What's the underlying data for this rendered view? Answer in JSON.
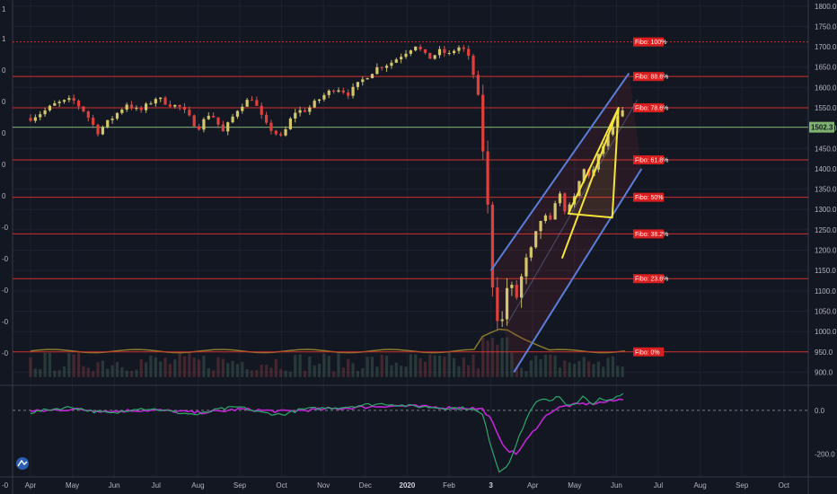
{
  "chart_data": {
    "type": "candlestick",
    "price_axis": {
      "ticks": [
        "1800.0",
        "1750.0",
        "1700.0",
        "1650.0",
        "1600.0",
        "1550.0",
        "1500.0",
        "1450.0",
        "1400.0",
        "1350.0",
        "1300.0",
        "1250.0",
        "1200.0",
        "1150.0",
        "1100.0",
        "1050.0",
        "1000.0",
        "950.0",
        "900.0"
      ],
      "tick_values": [
        1800,
        1750,
        1700,
        1650,
        1600,
        1550,
        1500,
        1450,
        1400,
        1350,
        1300,
        1250,
        1200,
        1150,
        1100,
        1050,
        1000,
        950,
        900
      ],
      "range": [
        870,
        1815
      ]
    },
    "last_price": {
      "label": "1502.3",
      "value": 1502.3
    },
    "left_axis_labels": [
      "1",
      "1",
      "0",
      "0",
      "0",
      "0",
      "0",
      "-0",
      "-0",
      "-0",
      "-0",
      "-0",
      "-0"
    ],
    "x_axis": {
      "labels": [
        "Apr",
        "May",
        "Jun",
        "Jul",
        "Aug",
        "Sep",
        "Oct",
        "Nov",
        "Dec",
        "2020",
        "Feb",
        "3",
        "Apr",
        "May",
        "Jun",
        "Jul",
        "Aug",
        "Sep",
        "Oct"
      ],
      "bold": [
        "2020",
        "3"
      ]
    },
    "fibo_levels": [
      {
        "label": "Fibo:  100%",
        "value": 1712
      },
      {
        "label": "Fibo: 88.6%",
        "value": 1627
      },
      {
        "label": "Fibo: 78.6%",
        "value": 1550
      },
      {
        "label": "Fibo: 61.8%",
        "value": 1422
      },
      {
        "label": "Fibo:   50%",
        "value": 1330
      },
      {
        "label": "Fibo: 38.2%",
        "value": 1240
      },
      {
        "label": "Fibo: 23.6%",
        "value": 1130
      },
      {
        "label": "Fibo:    0%",
        "value": 950
      }
    ],
    "price_path": {
      "x_month_index": [
        0,
        0.3,
        0.6,
        1.0,
        1.3,
        1.6,
        2.0,
        2.3,
        2.6,
        3.0,
        3.3,
        3.6,
        4.0,
        4.3,
        4.6,
        5.0,
        5.3,
        5.6,
        6.0,
        6.3,
        6.6,
        7.0,
        7.3,
        7.6,
        8.0,
        8.3,
        8.6,
        9.0,
        9.2,
        9.5,
        9.8,
        10.0,
        10.2,
        10.4,
        10.55,
        10.7,
        10.8,
        10.9,
        11.0,
        11.1,
        11.25,
        11.4,
        11.6,
        11.8,
        12.0,
        12.2,
        12.4,
        12.6,
        12.8,
        13.0,
        13.2,
        13.4,
        13.6,
        13.8,
        14.0,
        14.2
      ],
      "price": [
        1525,
        1540,
        1560,
        1570,
        1540,
        1490,
        1530,
        1560,
        1540,
        1575,
        1560,
        1550,
        1500,
        1540,
        1490,
        1555,
        1575,
        1510,
        1475,
        1540,
        1545,
        1580,
        1600,
        1585,
        1625,
        1650,
        1660,
        1690,
        1705,
        1670,
        1690,
        1680,
        1700,
        1690,
        1650,
        1560,
        1460,
        1350,
        1160,
        1060,
        1010,
        1120,
        1080,
        1160,
        1200,
        1280,
        1260,
        1350,
        1290,
        1330,
        1400,
        1380,
        1440,
        1480,
        1520,
        1545
      ]
    },
    "channel": {
      "upper": [
        [
          11.0,
          1150
        ],
        [
          14.3,
          1635
        ]
      ],
      "middle": [
        [
          11.4,
          1020
        ],
        [
          14.5,
          1570
        ]
      ],
      "lower": [
        [
          11.55,
          900
        ],
        [
          14.6,
          1400
        ]
      ]
    },
    "wedge": [
      [
        12.7,
        1180
      ],
      [
        14.05,
        1550
      ],
      [
        13.9,
        1280
      ],
      [
        12.85,
        1290
      ],
      [
        14.05,
        1550
      ]
    ],
    "macd": {
      "ticks": [
        "0.0",
        "-200.0"
      ],
      "tick_values": [
        0,
        -200
      ],
      "range": [
        -300,
        110
      ],
      "x_month_index": [
        0,
        0.5,
        1.0,
        1.5,
        2.0,
        2.5,
        3.0,
        3.5,
        4.0,
        4.5,
        5.0,
        5.5,
        6.0,
        6.5,
        7.0,
        7.5,
        8.0,
        8.5,
        9.0,
        9.5,
        10.0,
        10.5,
        10.8,
        11.0,
        11.2,
        11.4,
        11.6,
        11.8,
        12.0,
        12.2,
        12.4,
        12.6,
        12.8,
        13.0,
        13.2,
        13.4,
        13.6,
        13.8,
        14.0,
        14.2
      ],
      "macd_line": [
        -10,
        5,
        15,
        -5,
        -15,
        10,
        5,
        -10,
        -20,
        5,
        15,
        -10,
        -20,
        5,
        10,
        15,
        25,
        30,
        20,
        15,
        10,
        10,
        -20,
        -160,
        -280,
        -250,
        -160,
        -60,
        20,
        50,
        40,
        70,
        30,
        20,
        60,
        30,
        50,
        40,
        60,
        80
      ],
      "signal_line": [
        -5,
        0,
        5,
        0,
        -5,
        0,
        0,
        -5,
        -10,
        -5,
        5,
        0,
        -5,
        0,
        5,
        10,
        15,
        20,
        20,
        15,
        12,
        10,
        5,
        -40,
        -130,
        -180,
        -200,
        -150,
        -100,
        -50,
        -10,
        10,
        20,
        25,
        30,
        30,
        35,
        40,
        45,
        55
      ]
    }
  }
}
